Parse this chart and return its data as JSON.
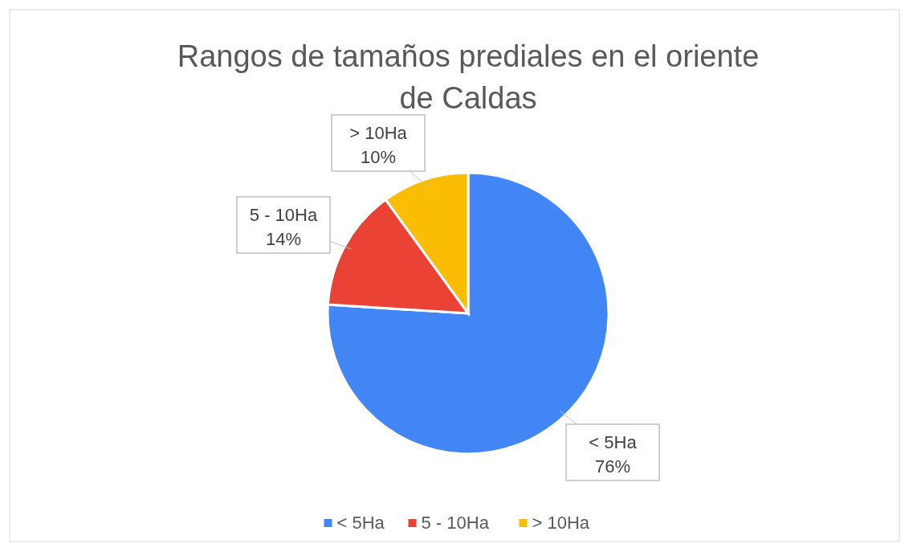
{
  "chart_data": {
    "type": "pie",
    "title": "Rangos de tamaños prediales en el oriente de Caldas",
    "categories": [
      "< 5Ha",
      "5 - 10Ha",
      "> 10Ha"
    ],
    "values": [
      76,
      14,
      10
    ],
    "value_labels": [
      "76%",
      "14%",
      "10%"
    ],
    "colors": [
      "#4285f4",
      "#ea4335",
      "#fbbc04"
    ],
    "legend": "bottom"
  }
}
